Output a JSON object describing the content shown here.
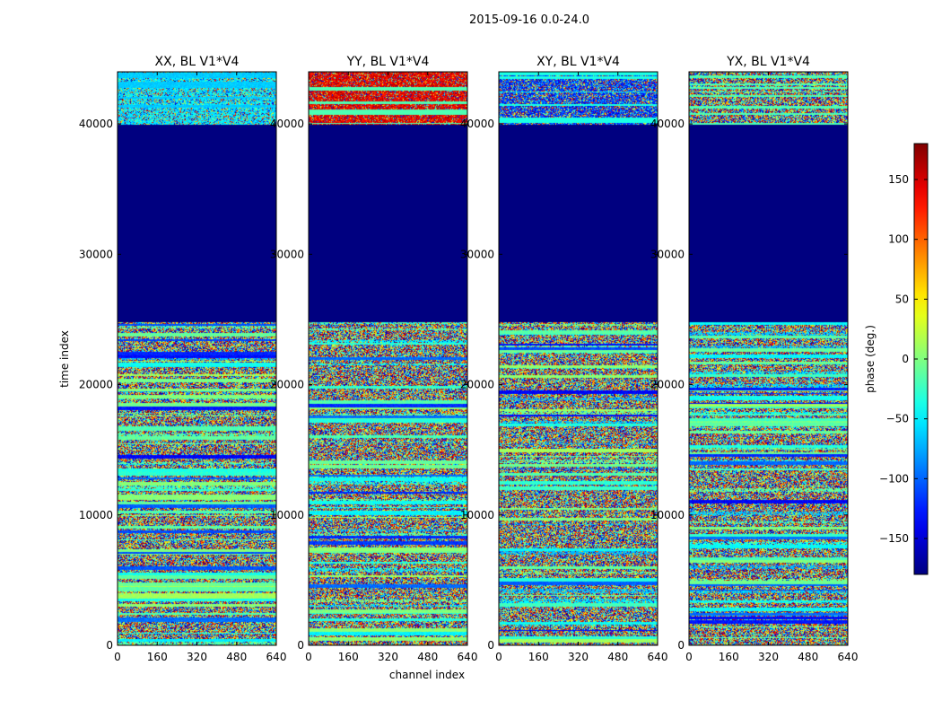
{
  "chart_data": {
    "type": "heatmap",
    "title": "2015-09-16 0.0-24.0",
    "xlabel": "channel index",
    "ylabel": "time index",
    "xlim": [
      0,
      640
    ],
    "ylim": [
      0,
      44000
    ],
    "xticks": [
      "0",
      "160",
      "320",
      "480",
      "640"
    ],
    "yticks": [
      "0",
      "10000",
      "20000",
      "30000",
      "40000"
    ],
    "panels": [
      {
        "title": "XX, BL V1*V4"
      },
      {
        "title": "YY, BL V1*V4"
      },
      {
        "title": "XY, BL V1*V4"
      },
      {
        "title": "YX, BL V1*V4"
      }
    ],
    "flagged_time_range": [
      24800,
      40000
    ],
    "flagged_value": -180,
    "colorbar": {
      "label": "phase (deg.)",
      "range": [
        -180,
        180
      ],
      "ticks": [
        "150",
        "100",
        "50",
        "0",
        "−50",
        "−100",
        "−150"
      ],
      "colormap": "jet"
    }
  }
}
